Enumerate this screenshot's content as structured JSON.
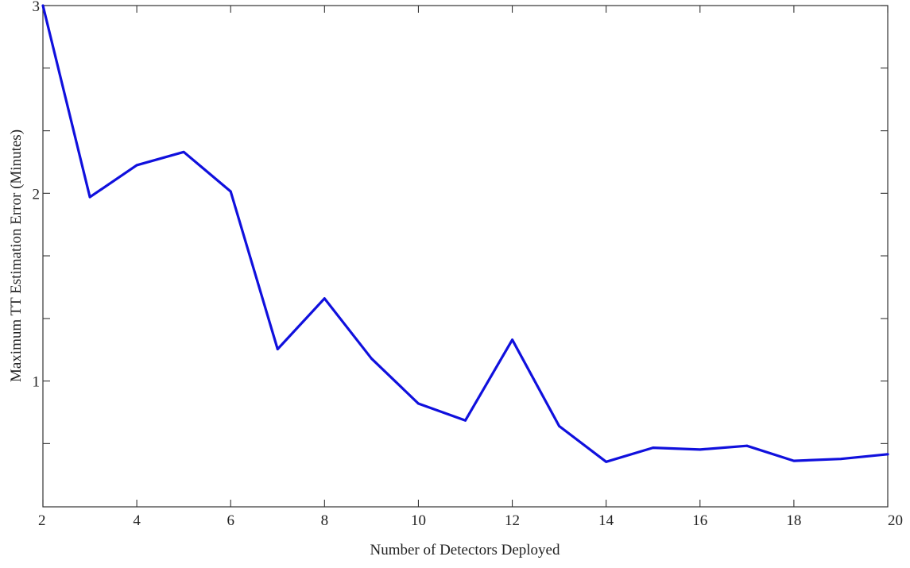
{
  "chart_data": {
    "type": "line",
    "title": "",
    "xlabel": "Number of Detectors Deployed",
    "ylabel": "Maximum TT Estimation Error (Minutes)",
    "xlim": [
      2,
      20
    ],
    "ylim": [
      0.33,
      3
    ],
    "x_ticks": [
      2,
      4,
      6,
      8,
      10,
      12,
      14,
      16,
      18,
      20
    ],
    "y_ticks": [
      1,
      2,
      3
    ],
    "y_minor_ticks": [
      0.667,
      1.333,
      1.667,
      2.333,
      2.667
    ],
    "grid": false,
    "legend": "none",
    "series": [
      {
        "color": "#1010dd",
        "x": [
          2,
          3,
          4,
          5,
          6,
          7,
          8,
          9,
          10,
          11,
          12,
          13,
          14,
          15,
          16,
          17,
          18,
          19,
          20
        ],
        "y": [
          3.0,
          1.98,
          2.15,
          2.22,
          2.01,
          1.17,
          1.44,
          1.12,
          0.88,
          0.79,
          1.22,
          0.76,
          0.57,
          0.645,
          0.635,
          0.655,
          0.575,
          0.585,
          0.61
        ]
      }
    ]
  }
}
